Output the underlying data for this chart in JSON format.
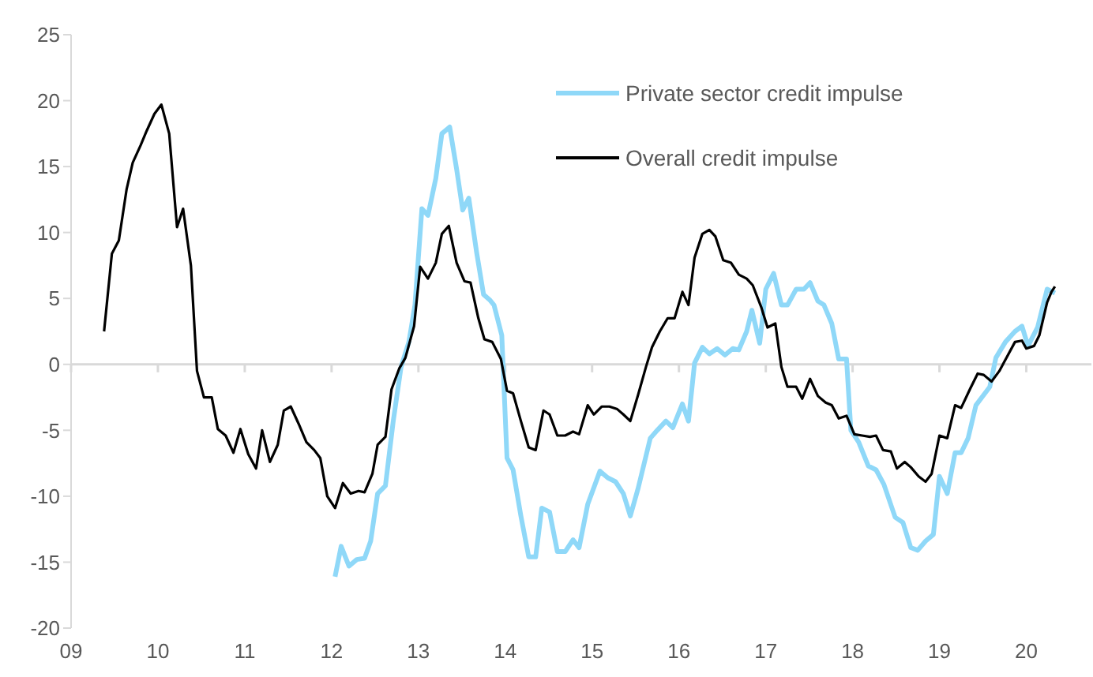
{
  "chart_data": {
    "type": "line",
    "xlim": [
      2009,
      2020.75
    ],
    "xticks": [
      {
        "value": 2009,
        "label": "09"
      },
      {
        "value": 2010,
        "label": "10"
      },
      {
        "value": 2011,
        "label": "11"
      },
      {
        "value": 2012,
        "label": "12"
      },
      {
        "value": 2013,
        "label": "13"
      },
      {
        "value": 2014,
        "label": "14"
      },
      {
        "value": 2015,
        "label": "15"
      },
      {
        "value": 2016,
        "label": "16"
      },
      {
        "value": 2017,
        "label": "17"
      },
      {
        "value": 2018,
        "label": "18"
      },
      {
        "value": 2019,
        "label": "19"
      },
      {
        "value": 2020,
        "label": "20"
      }
    ],
    "ylim": [
      -20,
      25
    ],
    "yticks": [
      -20,
      -15,
      -10,
      -5,
      0,
      5,
      10,
      15,
      20,
      25
    ],
    "grid": false,
    "legend": "top right",
    "marker": "none",
    "line_style": "solid",
    "ref_lines": [
      {
        "axis": "y",
        "value": 0,
        "color": "#d9d9d9"
      }
    ],
    "series": [
      {
        "name": "Private sector credit impulse",
        "color": "#8fd8f8",
        "x": [
          2012.04,
          2012.11,
          2012.2,
          2012.29,
          2012.38,
          2012.45,
          2012.53,
          2012.62,
          2012.71,
          2012.8,
          2012.89,
          2012.96,
          2013.04,
          2013.11,
          2013.2,
          2013.27,
          2013.36,
          2013.44,
          2013.51,
          2013.58,
          2013.67,
          2013.75,
          2013.82,
          2013.87,
          2013.96,
          2014.02,
          2014.09,
          2014.18,
          2014.27,
          2014.35,
          2014.42,
          2014.51,
          2014.6,
          2014.69,
          2014.78,
          2014.85,
          2014.95,
          2015.09,
          2015.18,
          2015.27,
          2015.36,
          2015.44,
          2015.53,
          2015.67,
          2015.75,
          2015.85,
          2015.93,
          2016.04,
          2016.11,
          2016.18,
          2016.27,
          2016.35,
          2016.44,
          2016.53,
          2016.62,
          2016.69,
          2016.78,
          2016.84,
          2016.93,
          2017.0,
          2017.09,
          2017.18,
          2017.25,
          2017.35,
          2017.44,
          2017.51,
          2017.6,
          2017.67,
          2017.76,
          2017.84,
          2017.93,
          2017.98,
          2018.07,
          2018.18,
          2018.27,
          2018.36,
          2018.49,
          2018.58,
          2018.67,
          2018.75,
          2018.84,
          2018.93,
          2019.0,
          2019.09,
          2019.18,
          2019.25,
          2019.33,
          2019.42,
          2019.58,
          2019.65,
          2019.76,
          2019.87,
          2019.95,
          2020.02,
          2020.13,
          2020.24,
          2020.33
        ],
        "values": [
          -16.1,
          -13.8,
          -15.3,
          -14.8,
          -14.7,
          -13.4,
          -9.8,
          -9.2,
          -4.3,
          -0.2,
          1.7,
          4.5,
          11.8,
          11.3,
          14.1,
          17.5,
          18,
          14.8,
          11.7,
          12.6,
          8.5,
          5.3,
          4.9,
          4.5,
          2.2,
          -7.1,
          -8,
          -11.5,
          -14.6,
          -14.6,
          -10.9,
          -11.2,
          -14.2,
          -14.2,
          -13.3,
          -13.9,
          -10.6,
          -8.1,
          -8.6,
          -8.9,
          -9.8,
          -11.5,
          -9.4,
          -5.6,
          -5,
          -4.3,
          -4.8,
          -3,
          -4.3,
          0.1,
          1.3,
          0.8,
          1.2,
          0.7,
          1.2,
          1.1,
          2.5,
          4.1,
          1.6,
          5.7,
          6.9,
          4.5,
          4.5,
          5.7,
          5.7,
          6.2,
          4.8,
          4.5,
          3.1,
          0.4,
          0.4,
          -5,
          -5.9,
          -7.7,
          -8,
          -9.1,
          -11.6,
          -12,
          -13.9,
          -14.1,
          -13.4,
          -12.9,
          -8.5,
          -9.8,
          -6.7,
          -6.7,
          -5.6,
          -3.1,
          -1.7,
          0.5,
          1.7,
          2.5,
          2.9,
          1.4,
          2.8,
          5.7,
          5.4
        ]
      },
      {
        "name": "Overall credit impulse",
        "color": "#000000",
        "x": [
          2009.38,
          2009.47,
          2009.55,
          2009.64,
          2009.71,
          2009.8,
          2009.87,
          2009.96,
          2010.04,
          2010.13,
          2010.22,
          2010.29,
          2010.38,
          2010.45,
          2010.53,
          2010.62,
          2010.69,
          2010.78,
          2010.87,
          2010.95,
          2011.04,
          2011.13,
          2011.2,
          2011.29,
          2011.38,
          2011.45,
          2011.53,
          2011.62,
          2011.71,
          2011.8,
          2011.87,
          2011.95,
          2012.04,
          2012.13,
          2012.22,
          2012.31,
          2012.38,
          2012.47,
          2012.53,
          2012.62,
          2012.69,
          2012.78,
          2012.85,
          2012.95,
          2013.02,
          2013.11,
          2013.2,
          2013.27,
          2013.35,
          2013.44,
          2013.53,
          2013.6,
          2013.69,
          2013.76,
          2013.85,
          2013.95,
          2014.02,
          2014.09,
          2014.18,
          2014.27,
          2014.35,
          2014.44,
          2014.51,
          2014.6,
          2014.69,
          2014.78,
          2014.85,
          2014.95,
          2015.02,
          2015.11,
          2015.2,
          2015.29,
          2015.36,
          2015.44,
          2015.53,
          2015.62,
          2015.69,
          2015.78,
          2015.87,
          2015.95,
          2016.04,
          2016.11,
          2016.18,
          2016.27,
          2016.35,
          2016.42,
          2016.51,
          2016.6,
          2016.69,
          2016.78,
          2016.85,
          2016.95,
          2017.02,
          2017.11,
          2017.18,
          2017.25,
          2017.35,
          2017.42,
          2017.51,
          2017.6,
          2017.69,
          2017.76,
          2017.84,
          2017.93,
          2018.02,
          2018.11,
          2018.2,
          2018.27,
          2018.35,
          2018.44,
          2018.51,
          2018.6,
          2018.67,
          2018.76,
          2018.84,
          2018.91,
          2019.0,
          2019.09,
          2019.18,
          2019.25,
          2019.35,
          2019.44,
          2019.51,
          2019.6,
          2019.69,
          2019.78,
          2019.87,
          2019.95,
          2020.0,
          2020.09,
          2020.15,
          2020.24,
          2020.29,
          2020.33
        ],
        "values": [
          2.5,
          8.4,
          9.4,
          13.3,
          15.3,
          16.6,
          17.7,
          19,
          19.7,
          17.5,
          10.4,
          11.8,
          7.5,
          -0.5,
          -2.5,
          -2.5,
          -4.9,
          -5.4,
          -6.7,
          -4.9,
          -6.8,
          -7.9,
          -5,
          -7.4,
          -6.1,
          -3.5,
          -3.2,
          -4.5,
          -5.9,
          -6.5,
          -7.1,
          -10,
          -10.9,
          -9,
          -9.8,
          -9.6,
          -9.7,
          -8.3,
          -6.1,
          -5.5,
          -1.9,
          -0.3,
          0.5,
          2.9,
          7.4,
          6.5,
          7.7,
          9.9,
          10.5,
          7.7,
          6.3,
          6.2,
          3.5,
          1.9,
          1.7,
          0.4,
          -2,
          -2.2,
          -4.3,
          -6.3,
          -6.5,
          -3.5,
          -3.8,
          -5.4,
          -5.4,
          -5.1,
          -5.3,
          -3.1,
          -3.8,
          -3.2,
          -3.2,
          -3.4,
          -3.8,
          -4.3,
          -2.3,
          -0.2,
          1.3,
          2.5,
          3.5,
          3.5,
          5.5,
          4.5,
          8.1,
          9.9,
          10.2,
          9.7,
          7.9,
          7.7,
          6.8,
          6.5,
          6,
          4.3,
          2.8,
          3.1,
          -0.2,
          -1.7,
          -1.7,
          -2.6,
          -1.1,
          -2.4,
          -2.9,
          -3.1,
          -4.1,
          -3.9,
          -5.3,
          -5.4,
          -5.5,
          -5.4,
          -6.5,
          -6.6,
          -7.9,
          -7.4,
          -7.8,
          -8.5,
          -8.9,
          -8.3,
          -5.4,
          -5.6,
          -3.1,
          -3.3,
          -1.9,
          -0.7,
          -0.8,
          -1.3,
          -0.5,
          0.6,
          1.7,
          1.8,
          1.2,
          1.4,
          2.2,
          4.7,
          5.5,
          5.9
        ]
      }
    ]
  }
}
